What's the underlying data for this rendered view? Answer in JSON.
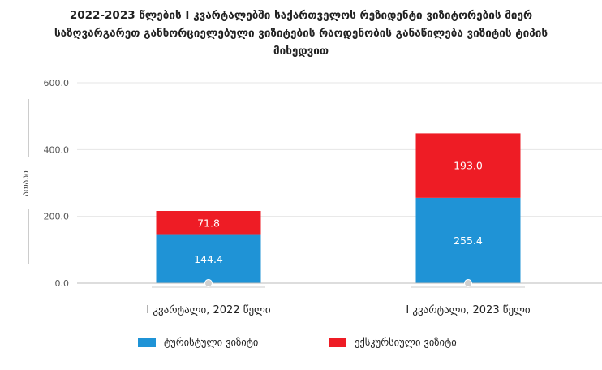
{
  "title_lines": [
    "2022-2023 წლების  I კვარტალებში საქართველოს რეზიდენტი ვიზიტორების მიერ",
    "საზღვარგარეთ განხორციელებული ვიზიტების რაოდენობის განაწილება ვიზიტის ტიპის",
    "მიხედვით"
  ],
  "chart_data": {
    "type": "bar",
    "stacked": true,
    "categories": [
      "I კვარტალი, 2022 წელი",
      "I კვარტალი, 2023 წელი"
    ],
    "series": [
      {
        "name": "ტურისტული ვიზიტი",
        "values": [
          144.4,
          255.4
        ],
        "color": "#1f93d6"
      },
      {
        "name": "ექსკურსიული ვიზიტი",
        "values": [
          71.8,
          193.0
        ],
        "color": "#ee1c25"
      }
    ],
    "data_labels": [
      [
        "144.4",
        "255.4"
      ],
      [
        "71.8",
        "193.0"
      ]
    ],
    "ylabel": "ათასი",
    "ylim": [
      0,
      600
    ],
    "yticks": [
      0,
      200,
      400,
      600
    ],
    "ytick_labels": [
      "0.0",
      "200.0",
      "400.0",
      "600.0"
    ],
    "grid": true,
    "legend_position": "bottom"
  }
}
